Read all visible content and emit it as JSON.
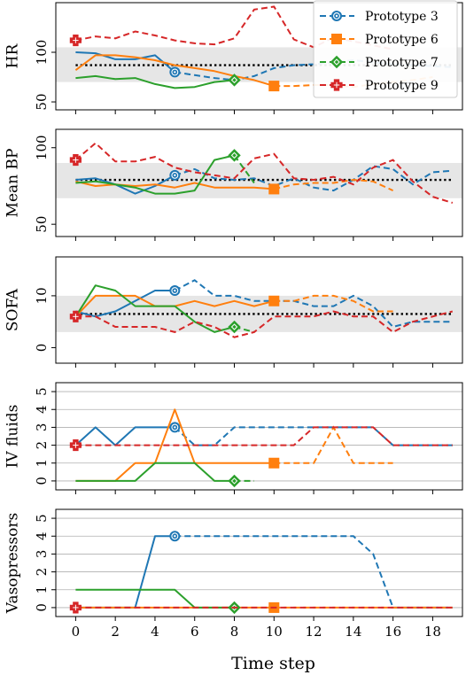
{
  "chart_data": {
    "type": "line",
    "xlabel": "Time step",
    "xlim": [
      -1,
      19.5
    ],
    "xticks": [
      0,
      2,
      4,
      6,
      8,
      10,
      12,
      14,
      16,
      18
    ],
    "legend": {
      "placement": "top-right",
      "entries": [
        "Prototype 3",
        "Prototype 6",
        "Prototype 7",
        "Prototype 9"
      ]
    },
    "series_styles": [
      {
        "name": "Prototype 3",
        "color": "#1f77b4",
        "marker": "circle-dot",
        "anchor": 5
      },
      {
        "name": "Prototype 6",
        "color": "#ff7f0e",
        "marker": "square",
        "anchor": 10
      },
      {
        "name": "Prototype 7",
        "color": "#2ca02c",
        "marker": "diamond",
        "anchor": 8
      },
      {
        "name": "Prototype 9",
        "color": "#d62728",
        "marker": "plus",
        "anchor": 0
      }
    ],
    "panels": [
      {
        "ylabel": "HR",
        "ylim": [
          42,
          150
        ],
        "yticks": [
          50,
          100
        ],
        "ytick_labels": [
          "50",
          "100"
        ],
        "band": [
          70,
          105
        ],
        "reference": 87,
        "grid": false,
        "series": [
          {
            "name": "Prototype 3",
            "x": [
              0,
              1,
              2,
              3,
              4,
              5,
              6,
              7,
              8,
              9,
              10,
              11,
              12,
              13,
              14,
              15,
              16,
              17,
              18,
              19
            ],
            "y": [
              100,
              99,
              93,
              93,
              97,
              80,
              77,
              74,
              72,
              76,
              84,
              87,
              88,
              90,
              92,
              90,
              88,
              87,
              86,
              85
            ]
          },
          {
            "name": "Prototype 6",
            "x": [
              0,
              1,
              2,
              3,
              4,
              5,
              6,
              7,
              8,
              9,
              10,
              11,
              12,
              13,
              14,
              15,
              16,
              17,
              18
            ],
            "y": [
              82,
              97,
              97,
              95,
              92,
              87,
              84,
              81,
              76,
              72,
              66,
              66,
              67,
              67,
              65,
              68,
              70,
              72,
              75
            ]
          },
          {
            "name": "Prototype 7",
            "x": [
              0,
              1,
              2,
              3,
              4,
              5,
              6,
              7,
              8
            ],
            "y": [
              74,
              76,
              73,
              74,
              68,
              64,
              65,
              70,
              72
            ]
          },
          {
            "name": "Prototype 9",
            "x": [
              0,
              1,
              2,
              3,
              4,
              5,
              6,
              7,
              8,
              9,
              10,
              11,
              12,
              13,
              14,
              15,
              16
            ],
            "y": [
              112,
              116,
              114,
              121,
              117,
              112,
              109,
              108,
              114,
              143,
              146,
              113,
              105,
              115,
              111,
              107,
              103
            ]
          }
        ]
      },
      {
        "ylabel": "Mean BP",
        "ylim": [
          42,
          112
        ],
        "yticks": [
          50,
          100
        ],
        "ytick_labels": [
          "50",
          "100"
        ],
        "band": [
          67,
          90
        ],
        "reference": 79,
        "grid": false,
        "series": [
          {
            "name": "Prototype 3",
            "x": [
              0,
              1,
              2,
              3,
              4,
              5,
              6,
              7,
              8,
              9,
              10,
              11,
              12,
              13,
              14,
              15,
              16,
              17,
              18,
              19
            ],
            "y": [
              79,
              80,
              76,
              70,
              75,
              82,
              86,
              80,
              79,
              80,
              75,
              80,
              74,
              72,
              79,
              88,
              86,
              76,
              84,
              85
            ]
          },
          {
            "name": "Prototype 6",
            "x": [
              0,
              1,
              2,
              3,
              4,
              5,
              6,
              7,
              8,
              9,
              10,
              11,
              12,
              13,
              14,
              15,
              16
            ],
            "y": [
              78,
              75,
              76,
              75,
              76,
              74,
              77,
              74,
              74,
              74,
              73,
              76,
              77,
              77,
              79,
              78,
              72
            ]
          },
          {
            "name": "Prototype 7",
            "x": [
              0,
              1,
              2,
              3,
              4,
              5,
              6,
              7,
              8,
              9
            ],
            "y": [
              77,
              78,
              76,
              74,
              70,
              70,
              72,
              92,
              95,
              77
            ]
          },
          {
            "name": "Prototype 9",
            "x": [
              0,
              1,
              2,
              3,
              4,
              5,
              6,
              7,
              8,
              9,
              10,
              11,
              12,
              13,
              14,
              15,
              16,
              17,
              18,
              19
            ],
            "y": [
              92,
              103,
              91,
              91,
              94,
              87,
              84,
              82,
              80,
              93,
              96,
              80,
              79,
              81,
              76,
              87,
              92,
              78,
              68,
              64
            ]
          }
        ]
      },
      {
        "ylabel": "SOFA",
        "ylim": [
          -3,
          17.5
        ],
        "yticks": [
          0,
          10
        ],
        "ytick_labels": [
          "0",
          "10"
        ],
        "band": [
          3,
          10
        ],
        "reference": 6.5,
        "grid": false,
        "series": [
          {
            "name": "Prototype 3",
            "x": [
              0,
              1,
              2,
              3,
              4,
              5,
              6,
              7,
              8,
              9,
              10,
              11,
              12,
              13,
              14,
              15,
              16,
              17,
              18,
              19
            ],
            "y": [
              7,
              6,
              7,
              9,
              11,
              11,
              13,
              10,
              10,
              9,
              9,
              9,
              8,
              8,
              10,
              8,
              4,
              5,
              5,
              5
            ]
          },
          {
            "name": "Prototype 6",
            "x": [
              0,
              1,
              2,
              3,
              4,
              5,
              6,
              7,
              8,
              9,
              10,
              11,
              12,
              13,
              14,
              15,
              16
            ],
            "y": [
              6,
              10,
              10,
              10,
              8,
              8,
              9,
              8,
              9,
              8,
              9,
              9,
              10,
              10,
              9,
              7,
              7
            ]
          },
          {
            "name": "Prototype 7",
            "x": [
              0,
              1,
              2,
              3,
              4,
              5,
              6,
              7,
              8,
              9
            ],
            "y": [
              6,
              12,
              11,
              8,
              8,
              8,
              5,
              3,
              4,
              3
            ]
          },
          {
            "name": "Prototype 9",
            "x": [
              0,
              1,
              2,
              3,
              4,
              5,
              6,
              7,
              8,
              9,
              10,
              11,
              12,
              13,
              14,
              15,
              16,
              17,
              18,
              19
            ],
            "y": [
              6,
              6,
              4,
              4,
              4,
              3,
              5,
              4,
              2,
              3,
              6,
              6,
              6,
              7,
              6,
              6,
              3,
              5,
              6,
              7
            ]
          }
        ]
      },
      {
        "ylabel": "IV fluids",
        "ylim": [
          -0.5,
          5.5
        ],
        "yticks": [
          0,
          1,
          2,
          3,
          4,
          5
        ],
        "ytick_labels": [
          "0",
          "1",
          "2",
          "3",
          "4",
          "5"
        ],
        "band": null,
        "reference": null,
        "grid": true,
        "series": [
          {
            "name": "Prototype 3",
            "x": [
              0,
              1,
              2,
              3,
              4,
              5,
              6,
              7,
              8,
              9,
              10,
              11,
              12,
              13,
              14,
              15,
              16,
              17,
              18,
              19
            ],
            "y": [
              2,
              3,
              2,
              3,
              3,
              3,
              2,
              2,
              3,
              3,
              3,
              3,
              3,
              3,
              3,
              3,
              2,
              2,
              2,
              2
            ]
          },
          {
            "name": "Prototype 6",
            "x": [
              0,
              1,
              2,
              3,
              4,
              5,
              6,
              7,
              8,
              9,
              10,
              11,
              12,
              13,
              14,
              15,
              16
            ],
            "y": [
              0,
              0,
              0,
              1,
              1,
              4,
              1,
              1,
              1,
              1,
              1,
              1,
              1,
              3,
              1,
              1,
              1
            ]
          },
          {
            "name": "Prototype 7",
            "x": [
              0,
              1,
              2,
              3,
              4,
              5,
              6,
              7,
              8,
              9
            ],
            "y": [
              0,
              0,
              0,
              0,
              1,
              1,
              1,
              0,
              0,
              0
            ]
          },
          {
            "name": "Prototype 9",
            "x": [
              0,
              1,
              2,
              3,
              4,
              5,
              6,
              7,
              8,
              9,
              10,
              11,
              12,
              13,
              14,
              15,
              16,
              17,
              18,
              19
            ],
            "y": [
              2,
              2,
              2,
              2,
              2,
              2,
              2,
              2,
              2,
              2,
              2,
              2,
              3,
              3,
              3,
              3,
              2,
              2,
              2,
              2
            ]
          }
        ]
      },
      {
        "ylabel": "Vasopressors",
        "ylim": [
          -0.5,
          5.5
        ],
        "yticks": [
          0,
          1,
          2,
          3,
          4,
          5
        ],
        "ytick_labels": [
          "0",
          "1",
          "2",
          "3",
          "4",
          "5"
        ],
        "band": null,
        "reference": null,
        "grid": true,
        "series": [
          {
            "name": "Prototype 3",
            "x": [
              0,
              1,
              2,
              3,
              4,
              5,
              6,
              7,
              8,
              9,
              10,
              11,
              12,
              13,
              14,
              15,
              16,
              17,
              18,
              19
            ],
            "y": [
              0,
              0,
              0,
              0,
              4,
              4,
              4,
              4,
              4,
              4,
              4,
              4,
              4,
              4,
              4,
              3,
              0,
              0,
              0,
              0
            ]
          },
          {
            "name": "Prototype 6",
            "x": [
              0,
              1,
              2,
              3,
              4,
              5,
              6,
              7,
              8,
              9,
              10,
              11,
              12,
              13,
              14,
              15,
              16,
              17,
              18,
              19
            ],
            "y": [
              0,
              0,
              0,
              0,
              0,
              0,
              0,
              0,
              0,
              0,
              0,
              0,
              0,
              0,
              0,
              0,
              0,
              0,
              0,
              0
            ]
          },
          {
            "name": "Prototype 7",
            "x": [
              0,
              1,
              2,
              3,
              4,
              5,
              6,
              7,
              8
            ],
            "y": [
              1,
              1,
              1,
              1,
              1,
              1,
              0,
              0,
              0
            ]
          },
          {
            "name": "Prototype 9",
            "x": [
              0,
              1,
              2,
              3,
              4,
              5,
              6,
              7,
              8,
              9,
              10,
              11,
              12,
              13,
              14,
              15,
              16,
              17,
              18,
              19
            ],
            "y": [
              0,
              0,
              0,
              0,
              0,
              0,
              0,
              0,
              0,
              0,
              0,
              0,
              0,
              0,
              0,
              0,
              0,
              0,
              0,
              0
            ]
          }
        ]
      }
    ]
  }
}
